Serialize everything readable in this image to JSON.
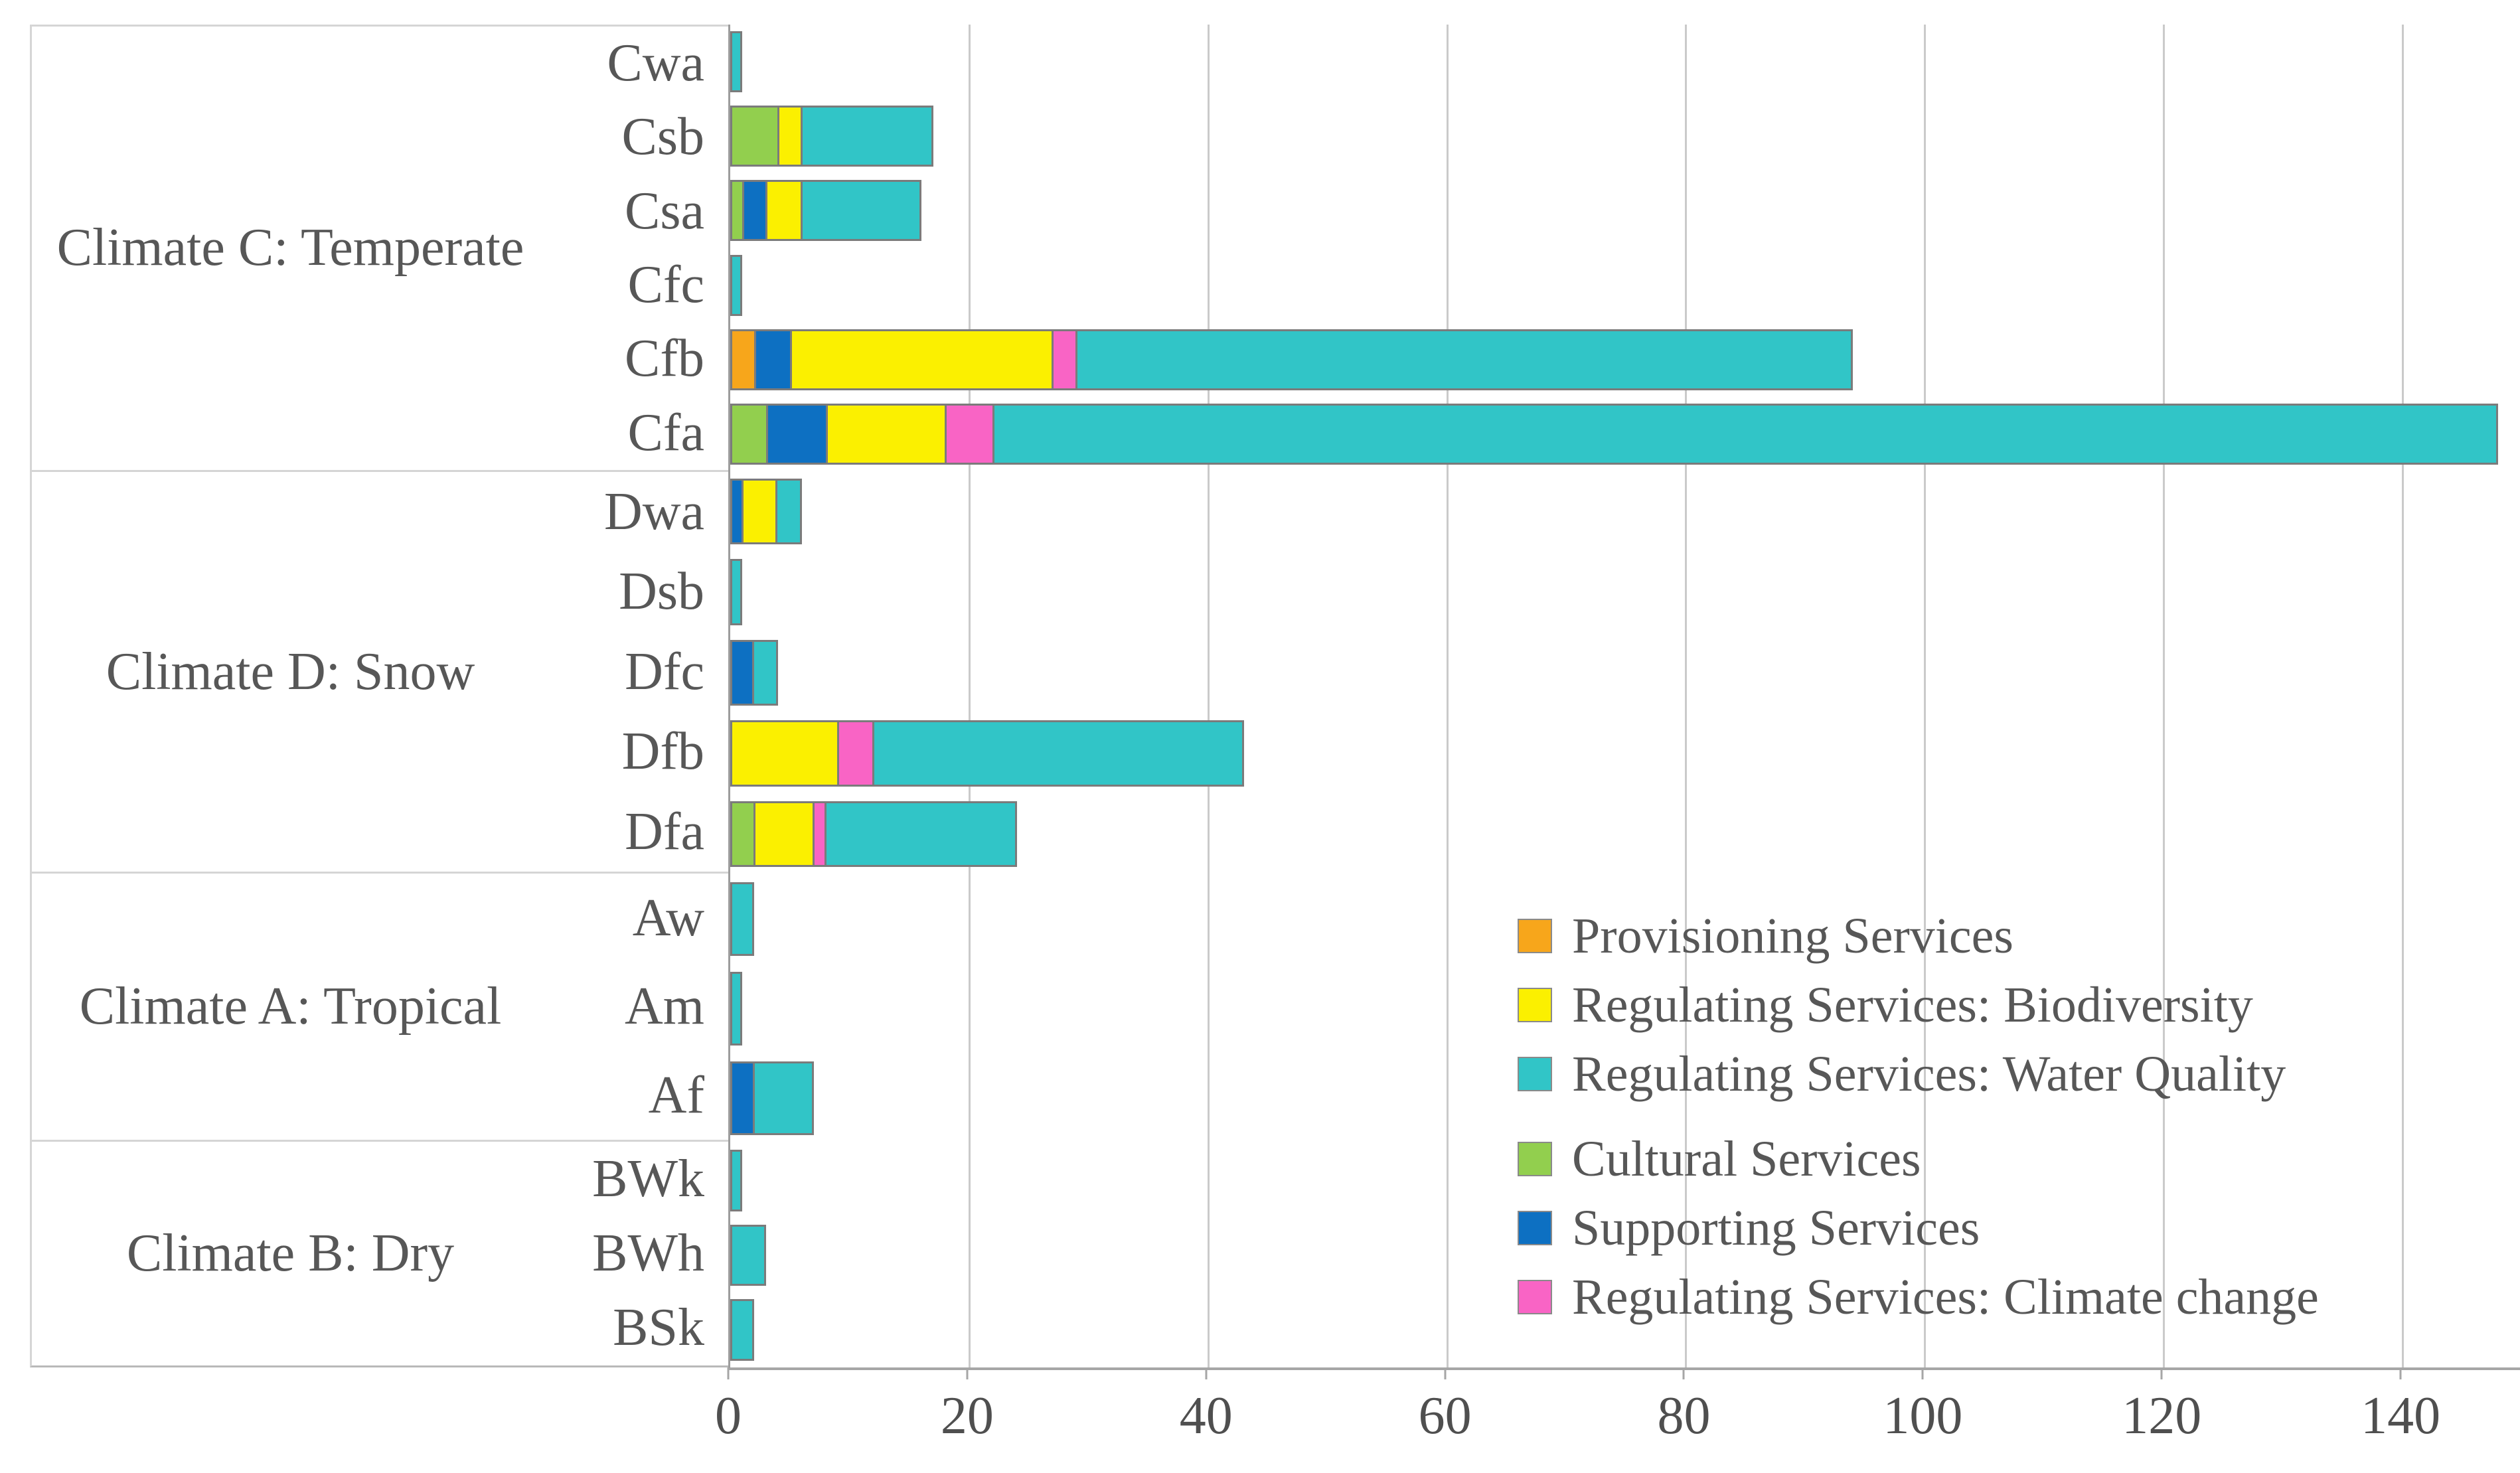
{
  "figure": {
    "background": "#ffffff",
    "text_color": "#575757",
    "grid_color": "#cacaca",
    "axis_color": "#9c9c9c",
    "bar_outline_color": "#7b7b7b",
    "box_border_color": "#d5d5d5"
  },
  "chart_data": {
    "type": "bar",
    "orientation": "horizontal",
    "stacked": true,
    "title": "",
    "xlabel": "",
    "ylabel": "",
    "xlim": [
      0,
      150
    ],
    "x_ticks": [
      0,
      20,
      40,
      60,
      80,
      100,
      120,
      140
    ],
    "grid": true,
    "series": [
      {
        "key": "provisioning",
        "label": "Provisioning Services",
        "color": "#F7A61B"
      },
      {
        "key": "biodiversity",
        "label": "Regulating Services: Biodiversity",
        "color": "#FBF000"
      },
      {
        "key": "water_quality",
        "label": "Regulating Services: Water Quality",
        "color": "#31C5C7"
      },
      {
        "key": "cultural",
        "label": "Cultural Services",
        "color": "#92CF4E"
      },
      {
        "key": "supporting",
        "label": "Supporting Services",
        "color": "#0D70C2"
      },
      {
        "key": "climate_change",
        "label": "Regulating Services: Climate change",
        "color": "#F964C5"
      }
    ],
    "legend": {
      "position": "inside-bottom-right",
      "clusters": [
        [
          "provisioning",
          "biodiversity",
          "water_quality"
        ],
        [
          "cultural",
          "supporting",
          "climate_change"
        ]
      ]
    },
    "groups": [
      {
        "label": "Climate C: Temperate",
        "rows": [
          {
            "label": "Cwa",
            "total": 1,
            "segments": [
              {
                "series": "water_quality",
                "value": 1
              }
            ]
          },
          {
            "label": "Csb",
            "total": 17,
            "segments": [
              {
                "series": "cultural",
                "value": 4
              },
              {
                "series": "biodiversity",
                "value": 2
              },
              {
                "series": "water_quality",
                "value": 11
              }
            ]
          },
          {
            "label": "Csa",
            "total": 16,
            "segments": [
              {
                "series": "cultural",
                "value": 1
              },
              {
                "series": "supporting",
                "value": 2
              },
              {
                "series": "biodiversity",
                "value": 3
              },
              {
                "series": "water_quality",
                "value": 10
              }
            ]
          },
          {
            "label": "Cfc",
            "total": 1,
            "segments": [
              {
                "series": "water_quality",
                "value": 1
              }
            ]
          },
          {
            "label": "Cfb",
            "total": 94,
            "segments": [
              {
                "series": "provisioning",
                "value": 2
              },
              {
                "series": "supporting",
                "value": 3
              },
              {
                "series": "biodiversity",
                "value": 22
              },
              {
                "series": "climate_change",
                "value": 2
              },
              {
                "series": "water_quality",
                "value": 65
              }
            ]
          },
          {
            "label": "Cfa",
            "total": 148,
            "segments": [
              {
                "series": "cultural",
                "value": 3
              },
              {
                "series": "supporting",
                "value": 5
              },
              {
                "series": "biodiversity",
                "value": 10
              },
              {
                "series": "climate_change",
                "value": 4
              },
              {
                "series": "water_quality",
                "value": 126
              }
            ]
          }
        ]
      },
      {
        "label": "Climate D: Snow",
        "rows": [
          {
            "label": "Dwa",
            "total": 6,
            "segments": [
              {
                "series": "supporting",
                "value": 1
              },
              {
                "series": "biodiversity",
                "value": 3
              },
              {
                "series": "water_quality",
                "value": 2
              }
            ]
          },
          {
            "label": "Dsb",
            "total": 1,
            "segments": [
              {
                "series": "water_quality",
                "value": 1
              }
            ]
          },
          {
            "label": "Dfc",
            "total": 4,
            "segments": [
              {
                "series": "supporting",
                "value": 2
              },
              {
                "series": "water_quality",
                "value": 2
              }
            ]
          },
          {
            "label": "Dfb",
            "total": 43,
            "segments": [
              {
                "series": "biodiversity",
                "value": 9
              },
              {
                "series": "climate_change",
                "value": 3
              },
              {
                "series": "water_quality",
                "value": 31
              }
            ]
          },
          {
            "label": "Dfa",
            "total": 24,
            "segments": [
              {
                "series": "cultural",
                "value": 2
              },
              {
                "series": "biodiversity",
                "value": 5
              },
              {
                "series": "climate_change",
                "value": 1
              },
              {
                "series": "water_quality",
                "value": 16
              }
            ]
          }
        ]
      },
      {
        "label": "Climate A: Tropical",
        "rows": [
          {
            "label": "Aw",
            "total": 2,
            "segments": [
              {
                "series": "water_quality",
                "value": 2
              }
            ]
          },
          {
            "label": "Am",
            "total": 1,
            "segments": [
              {
                "series": "water_quality",
                "value": 1
              }
            ]
          },
          {
            "label": "Af",
            "total": 7,
            "segments": [
              {
                "series": "supporting",
                "value": 2
              },
              {
                "series": "water_quality",
                "value": 5
              }
            ]
          }
        ]
      },
      {
        "label": "Climate B: Dry",
        "rows": [
          {
            "label": "BWk",
            "total": 1,
            "segments": [
              {
                "series": "water_quality",
                "value": 1
              }
            ]
          },
          {
            "label": "BWh",
            "total": 3,
            "segments": [
              {
                "series": "water_quality",
                "value": 3
              }
            ]
          },
          {
            "label": "BSk",
            "total": 2,
            "segments": [
              {
                "series": "water_quality",
                "value": 2
              }
            ]
          }
        ]
      }
    ]
  }
}
